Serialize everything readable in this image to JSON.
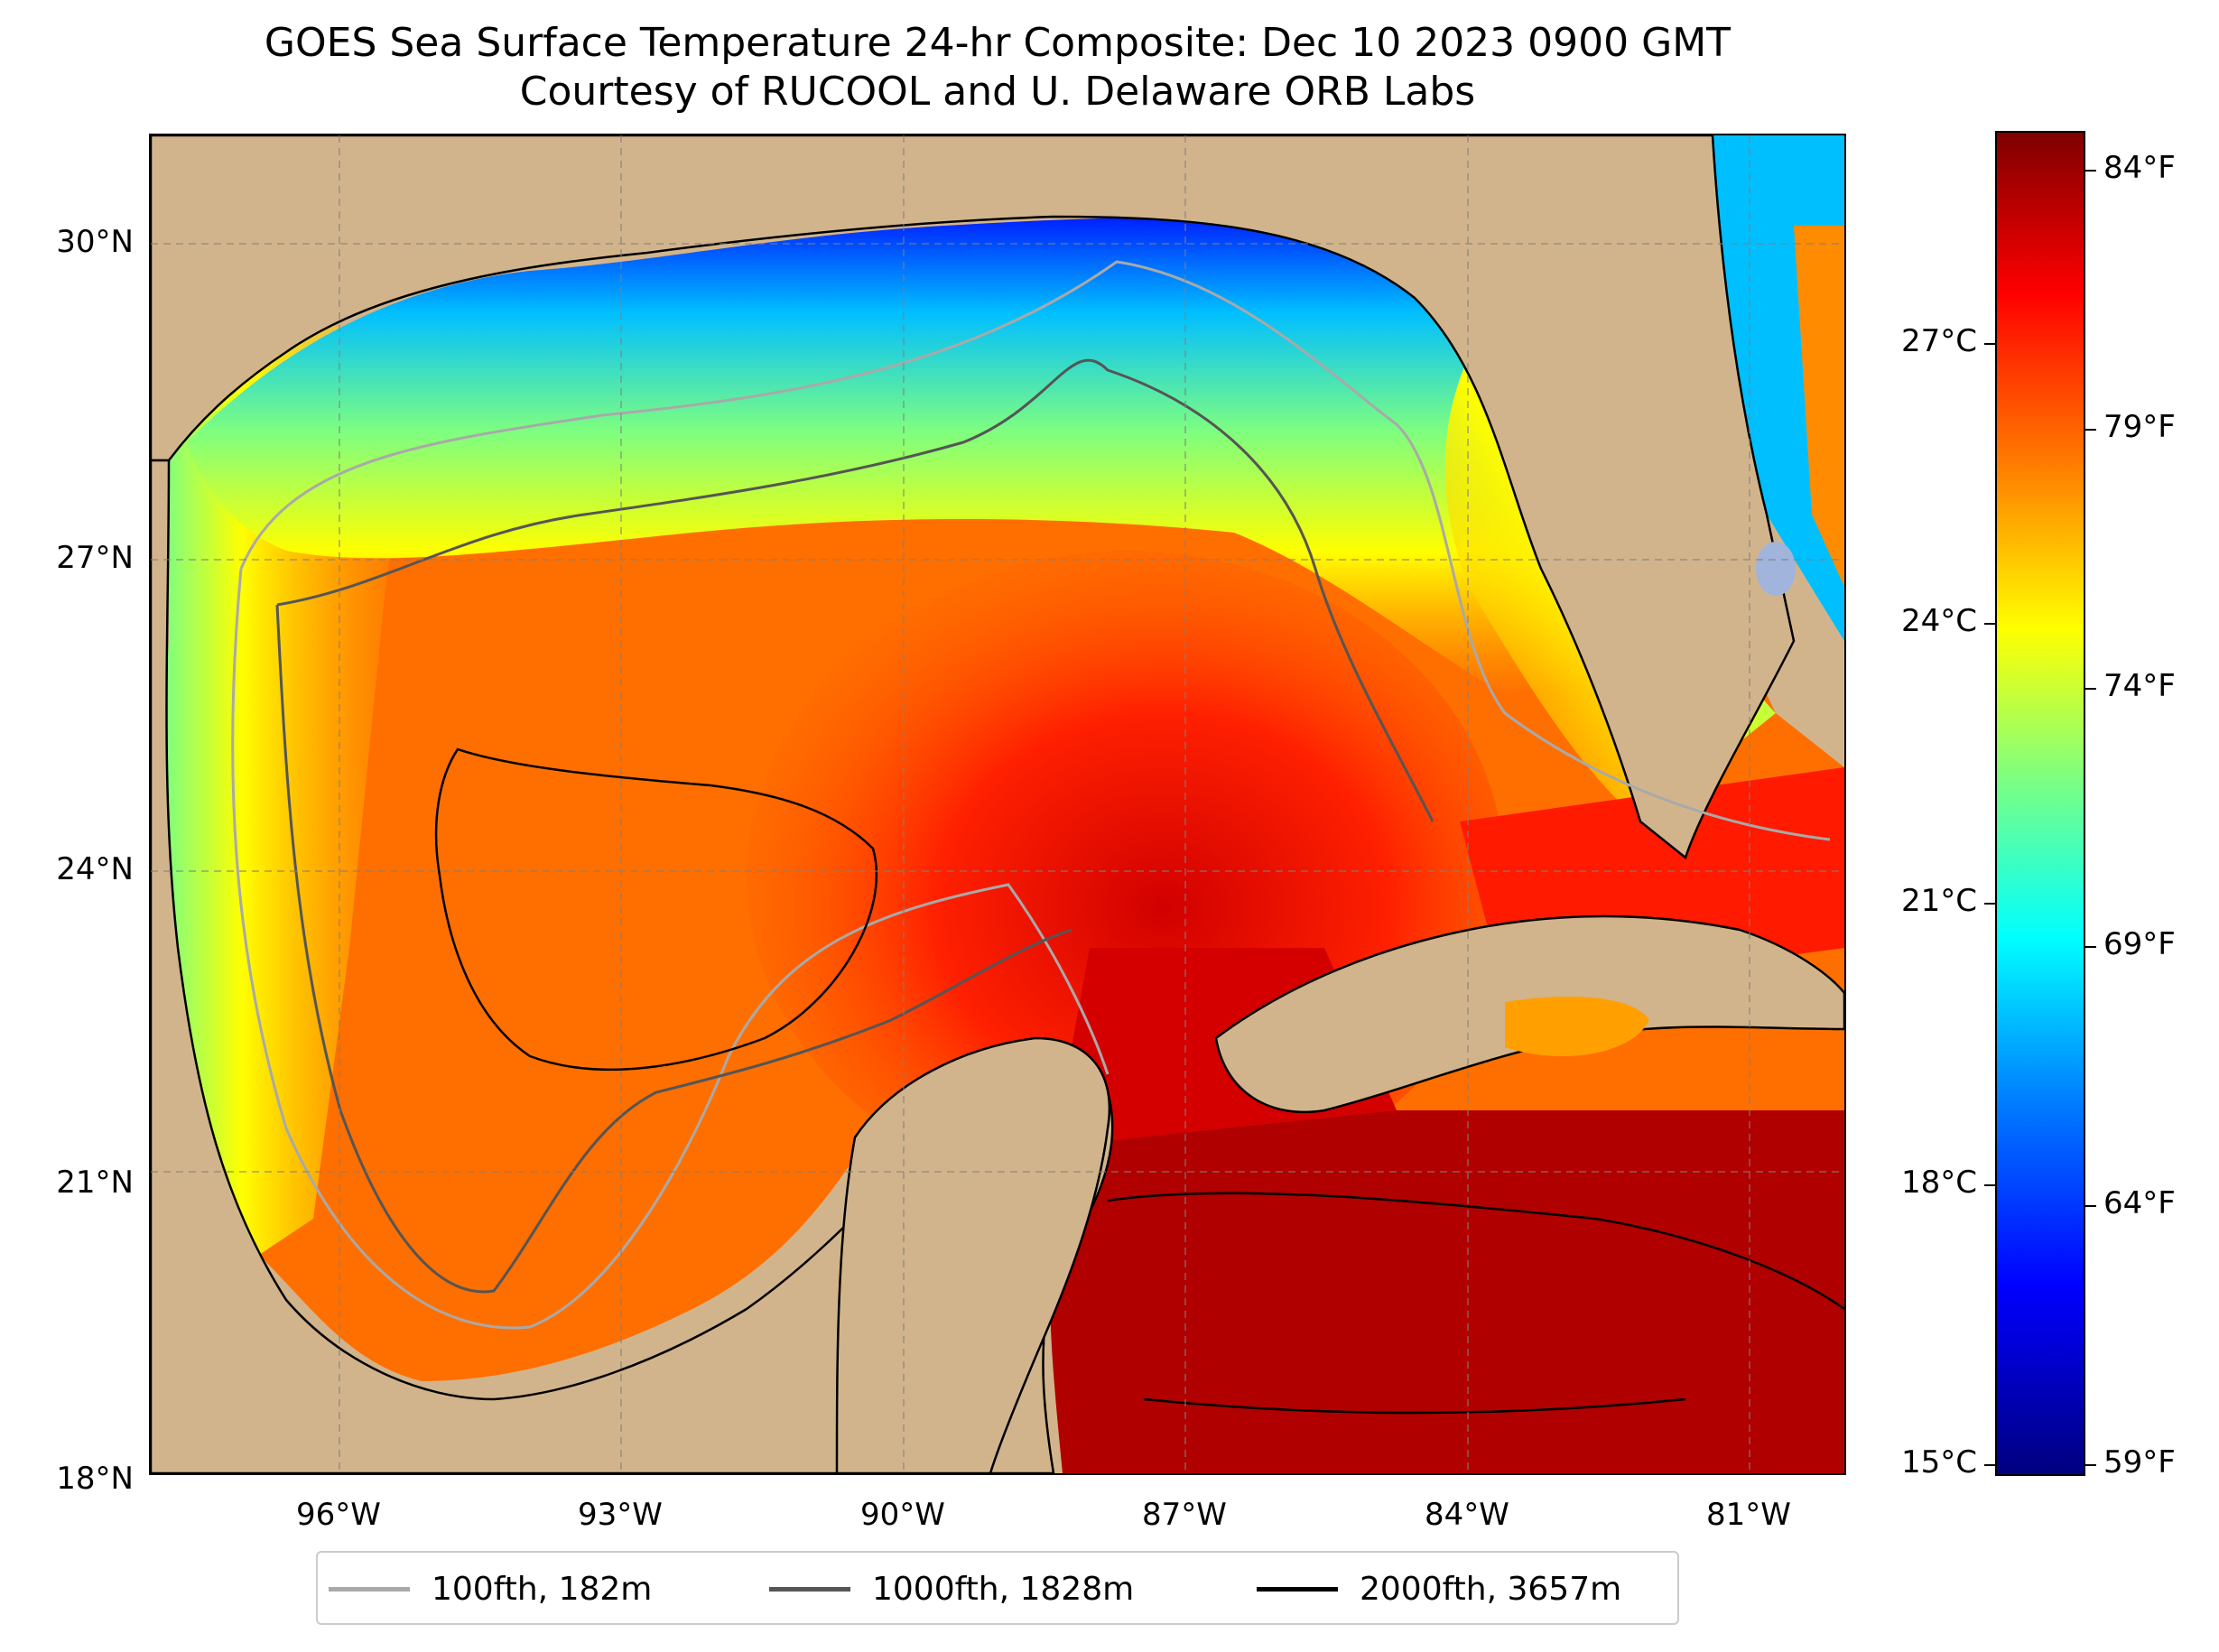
{
  "title": {
    "line1": "GOES Sea Surface Temperature 24-hr Composite: Dec 10 2023 0900 GMT",
    "line2": "Courtesy of RUCOOL and U. Delaware ORB Labs"
  },
  "map": {
    "land_color": "#d2b48c",
    "lat_ticks": [
      {
        "value": 30,
        "label": "30°N"
      },
      {
        "value": 27,
        "label": "27°N"
      },
      {
        "value": 24,
        "label": "24°N"
      },
      {
        "value": 21,
        "label": "21°N"
      },
      {
        "value": 18,
        "label": "18°N"
      }
    ],
    "lon_ticks": [
      {
        "value": -96,
        "label": "96°W"
      },
      {
        "value": -93,
        "label": "93°W"
      },
      {
        "value": -90,
        "label": "90°W"
      },
      {
        "value": -87,
        "label": "87°W"
      },
      {
        "value": -84,
        "label": "84°W"
      },
      {
        "value": -81,
        "label": "81°W"
      }
    ],
    "extent": {
      "lon_min": -98,
      "lon_max": -80,
      "lat_min": 18,
      "lat_max": 31
    }
  },
  "colorbar": {
    "celsius_ticks": [
      "27°C",
      "24°C",
      "21°C",
      "18°C",
      "15°C"
    ],
    "fahrenheit_ticks": [
      "84°F",
      "79°F",
      "74°F",
      "69°F",
      "64°F",
      "59°F"
    ],
    "colors": [
      "#00007f",
      "#0000ff",
      "#007fff",
      "#00ffff",
      "#7fff7f",
      "#ffff00",
      "#ff7f00",
      "#ff0000",
      "#7f0000"
    ]
  },
  "legend": {
    "items": [
      {
        "label": "100fth, 182m",
        "color": "#a9a9a9"
      },
      {
        "label": "1000fth, 1828m",
        "color": "#555555"
      },
      {
        "label": "2000fth, 3657m",
        "color": "#000000"
      }
    ]
  }
}
